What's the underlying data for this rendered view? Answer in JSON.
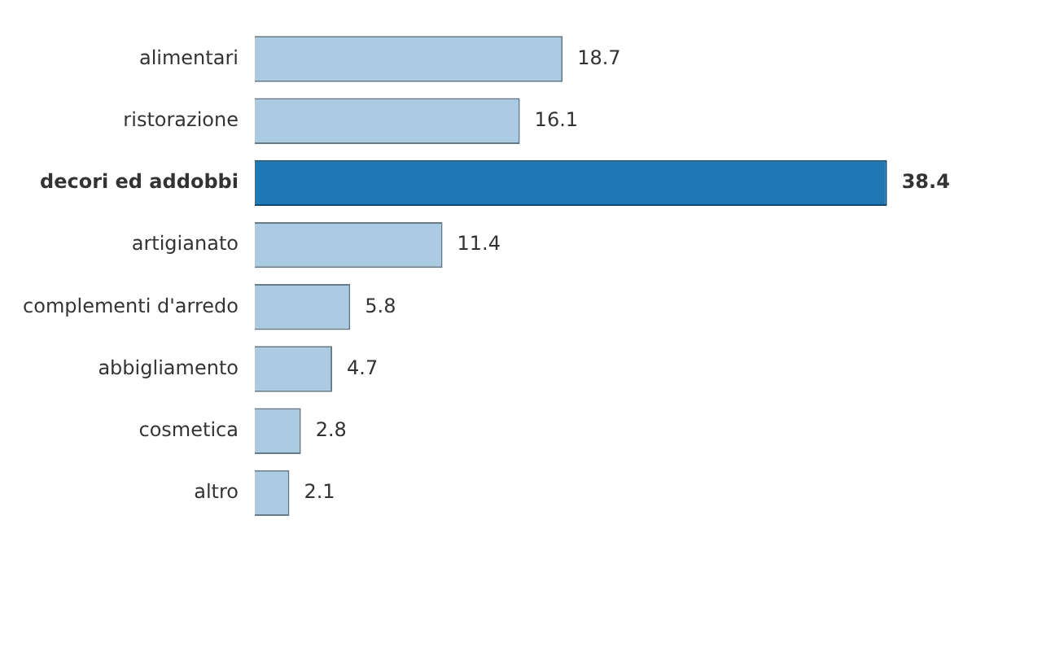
{
  "chart_data": {
    "type": "bar",
    "orientation": "horizontal",
    "categories": [
      "alimentari",
      "ristorazione",
      "decori ed addobbi",
      "artigianato",
      "complementi d'arredo",
      "abbigliamento",
      "cosmetica",
      "altro"
    ],
    "values": [
      18.7,
      16.1,
      38.4,
      11.4,
      5.8,
      4.7,
      2.8,
      2.1
    ],
    "colors": [
      "#abcbe3",
      "#abcbe3",
      "#1f78b4",
      "#abcbe3",
      "#abcbe3",
      "#abcbe3",
      "#abcbe3",
      "#abcbe3"
    ],
    "data_labels": true,
    "tick_labels": "y",
    "legend": false
  }
}
